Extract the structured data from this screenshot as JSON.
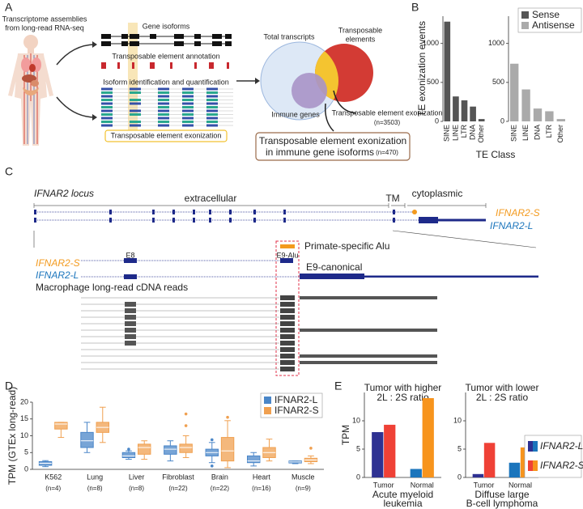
{
  "panel_labels": [
    "A",
    "B",
    "C",
    "D",
    "E"
  ],
  "panel_a": {
    "source": [
      "Transcriptome assemblies",
      "from long-read RNA-seq"
    ],
    "steps": [
      "Gene isoforms",
      "Transposable element annotation",
      "Isoform identification and quantification",
      "Transposable element exonization"
    ],
    "venn": {
      "total": "Total transcripts",
      "te": [
        "Transposable",
        "elements"
      ],
      "immune": "Immune genes"
    },
    "result": "Transposable element exonization",
    "result_count": "(n=3503)",
    "final": [
      "Transposable element exonization",
      "in immune gene isoforms"
    ],
    "final_count": "(n=470)"
  },
  "panel_c": {
    "title": "IFNAR2 locus",
    "domains": [
      "extracellular",
      "TM",
      "cytoplasmic"
    ],
    "isoforms": [
      "IFNAR2-S",
      "IFNAR2-L"
    ],
    "alu": "Primate-specific Alu",
    "exons": [
      "E8",
      "E9-Alu",
      "E9-canonical"
    ],
    "reads_label": "Macrophage long-read cDNA reads"
  },
  "chart_data": [
    {
      "type": "bar",
      "ylabel": "TE exonization events",
      "xlabel": "TE Class",
      "categories": [
        "SINE",
        "LINE",
        "LTR",
        "DNA",
        "Other"
      ],
      "series": [
        {
          "name": "Sense",
          "color": "#555555",
          "values": [
            1280,
            320,
            270,
            190,
            30
          ]
        }
      ],
      "ylim": [
        0,
        1350
      ],
      "yticks": [
        0,
        500,
        1000
      ],
      "legend": "upper right"
    },
    {
      "type": "bar",
      "categories": [
        "SINE",
        "LINE",
        "DNA",
        "LTR",
        "Other"
      ],
      "series": [
        {
          "name": "Antisense",
          "color": "#aaaaaa",
          "values": [
            740,
            410,
            165,
            130,
            30
          ]
        }
      ],
      "ylim": [
        0,
        1350
      ],
      "yticks": [
        0,
        500,
        1000
      ]
    },
    {
      "type": "box",
      "ylabel": "TPM (GTEx long-read)",
      "categories": [
        "K562",
        "Lung",
        "Liver",
        "Fibroblast",
        "Brain",
        "Heart",
        "Muscle"
      ],
      "sample_sizes": [
        "(n=4)",
        "(n=8)",
        "(n=8)",
        "(n=22)",
        "(n=22)",
        "(n=16)",
        "(n=9)"
      ],
      "series": [
        {
          "name": "IFNAR2-L",
          "color": "#4a86c8",
          "values": [
            {
              "min": 0.8,
              "q1": 1.2,
              "median": 1.8,
              "q3": 2.3,
              "max": 2.6,
              "outliers": []
            },
            {
              "min": 5,
              "q1": 6.5,
              "median": 8.5,
              "q3": 11,
              "max": 14,
              "outliers": []
            },
            {
              "min": 3,
              "q1": 3.5,
              "median": 4,
              "q3": 5,
              "max": 5.5,
              "outliers": [
                6
              ]
            },
            {
              "min": 2.5,
              "q1": 4.5,
              "median": 6,
              "q3": 7,
              "max": 8.5,
              "outliers": []
            },
            {
              "min": 2,
              "q1": 4,
              "median": 5,
              "q3": 6,
              "max": 8,
              "outliers": [
                1,
                8.8
              ]
            },
            {
              "min": 1,
              "q1": 2,
              "median": 2.5,
              "q3": 4,
              "max": 5,
              "outliers": []
            },
            {
              "min": 1.7,
              "q1": 1.9,
              "median": 2.2,
              "q3": 2.5,
              "max": 2.5,
              "outliers": []
            }
          ]
        },
        {
          "name": "IFNAR2-S",
          "color": "#f0a050",
          "values": [
            {
              "min": 9.5,
              "q1": 12,
              "median": 13.5,
              "q3": 14,
              "max": 14,
              "outliers": []
            },
            {
              "min": 8,
              "q1": 11,
              "median": 12.5,
              "q3": 14,
              "max": 18.5,
              "outliers": []
            },
            {
              "min": 3,
              "q1": 4.5,
              "median": 6.5,
              "q3": 7.5,
              "max": 8.5,
              "outliers": []
            },
            {
              "min": 3.5,
              "q1": 5,
              "median": 6.5,
              "q3": 7.5,
              "max": 10,
              "outliers": [
                13,
                16.5
              ]
            },
            {
              "min": 0.5,
              "q1": 2.5,
              "median": 5.5,
              "q3": 9.5,
              "max": 14.5,
              "outliers": [
                15.5
              ]
            },
            {
              "min": 2.5,
              "q1": 3.5,
              "median": 5,
              "q3": 6.5,
              "max": 9,
              "outliers": []
            },
            {
              "min": 1.7,
              "q1": 2.3,
              "median": 2.8,
              "q3": 3.3,
              "max": 4,
              "outliers": [
                6.3
              ]
            }
          ]
        }
      ],
      "ylim": [
        0,
        20
      ],
      "yticks": [
        0,
        5,
        10,
        15,
        20
      ],
      "legend": "upper right"
    },
    {
      "type": "bar",
      "title": [
        "Tumor with higher",
        "2L : 2S ratio"
      ],
      "ylabel": "TPM",
      "xlabel": [
        "Acute myeloid",
        "leukemia"
      ],
      "categories": [
        "Tumor",
        "Normal"
      ],
      "series": [
        {
          "name": "IFNAR2-L",
          "colors": [
            "#2e3192",
            "#1b75bc"
          ],
          "values": [
            8,
            1.5
          ]
        },
        {
          "name": "IFNAR2-S",
          "colors": [
            "#ef4136",
            "#f7941d"
          ],
          "values": [
            9.3,
            14
          ]
        }
      ],
      "ylim": [
        0,
        15
      ],
      "yticks": [
        0,
        5,
        10
      ],
      "legend": "right"
    },
    {
      "type": "bar",
      "title": [
        "Tumor with lower",
        "2L : 2S ratio"
      ],
      "xlabel": [
        "Diffuse large",
        "B-cell lymphoma"
      ],
      "categories": [
        "Tumor",
        "Normal"
      ],
      "series": [
        {
          "colors": [
            "#2e3192",
            "#1b75bc"
          ],
          "values": [
            0.6,
            2.6
          ]
        },
        {
          "colors": [
            "#ef4136",
            "#f7941d"
          ],
          "values": [
            6.1,
            5.3
          ]
        }
      ],
      "ylim": [
        0,
        15
      ],
      "yticks": [
        0,
        5,
        10
      ]
    }
  ]
}
